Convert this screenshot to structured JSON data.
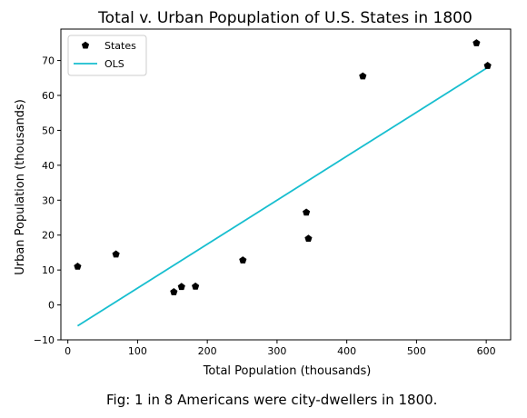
{
  "chart_data": {
    "type": "scatter",
    "title": "Total v. Urban Popuplation of U.S. States in 1800",
    "xlabel": "Total Population (thousands)",
    "ylabel": "Urban Population (thousands)",
    "xlim": [
      -10,
      635
    ],
    "ylim": [
      -10,
      79
    ],
    "xticks": [
      0,
      100,
      200,
      300,
      400,
      500,
      600
    ],
    "yticks": [
      -10,
      0,
      10,
      20,
      30,
      40,
      50,
      60,
      70
    ],
    "grid": false,
    "legend_position": "top-left",
    "series": [
      {
        "name": "States",
        "kind": "scatter",
        "color": "#000000",
        "points": [
          {
            "x": 14,
            "y": 11
          },
          {
            "x": 69,
            "y": 14.5
          },
          {
            "x": 152,
            "y": 3.7
          },
          {
            "x": 163,
            "y": 5.2
          },
          {
            "x": 183,
            "y": 5.3
          },
          {
            "x": 251,
            "y": 12.8
          },
          {
            "x": 342,
            "y": 26.5
          },
          {
            "x": 345,
            "y": 19
          },
          {
            "x": 423,
            "y": 65.5
          },
          {
            "x": 586,
            "y": 75
          },
          {
            "x": 602,
            "y": 68.5
          }
        ]
      },
      {
        "name": "OLS",
        "kind": "line",
        "color": "#17BECF",
        "points": [
          {
            "x": 14,
            "y": -6
          },
          {
            "x": 602,
            "y": 68
          }
        ]
      }
    ],
    "caption": "Fig: 1 in 8 Americans were city-dwellers in 1800."
  }
}
